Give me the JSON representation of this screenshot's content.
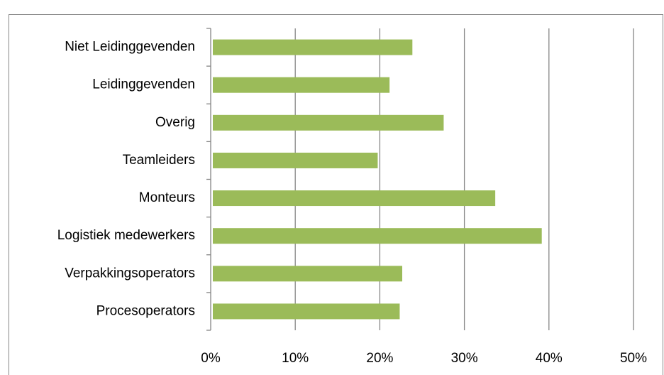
{
  "chart_data": {
    "type": "bar",
    "orientation": "horizontal",
    "categories": [
      "Niet Leidinggevenden",
      "Leidinggevenden",
      "Overig",
      "Teamleiders",
      "Monteurs",
      "Logistiek medewerkers",
      "Verpakkingsoperators",
      "Procesoperators"
    ],
    "values": [
      23.6,
      20.9,
      27.3,
      19.5,
      33.4,
      38.9,
      22.4,
      22.1
    ],
    "color": "#9bbb59",
    "xlim": [
      0,
      50
    ],
    "xticks": [
      {
        "value": 0,
        "label": "0%"
      },
      {
        "value": 10,
        "label": "10%"
      },
      {
        "value": 20,
        "label": "20%"
      },
      {
        "value": 30,
        "label": "30%"
      },
      {
        "value": 40,
        "label": "40%"
      },
      {
        "value": 50,
        "label": "50%"
      }
    ],
    "grid": true
  }
}
